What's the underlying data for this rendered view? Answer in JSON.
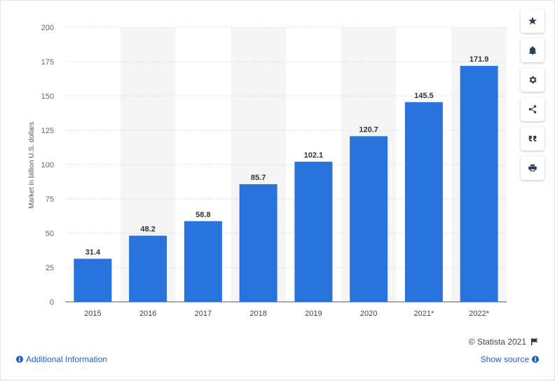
{
  "chart_data": {
    "type": "bar",
    "categories": [
      "2015",
      "2016",
      "2017",
      "2018",
      "2019",
      "2020",
      "2021*",
      "2022*"
    ],
    "values": [
      31.4,
      48.2,
      58.8,
      85.7,
      102.1,
      120.7,
      145.5,
      171.9
    ],
    "value_labels": [
      "31.4",
      "48.2",
      "58.8",
      "85.7",
      "102.1",
      "120.7",
      "145.5",
      "171.9"
    ],
    "ylabel": "Market in billion U.S. dollars",
    "ylim": [
      0,
      200
    ],
    "yticks": [
      0,
      25,
      50,
      75,
      100,
      125,
      150,
      175,
      200
    ],
    "grid": true,
    "bar_color": "#2873dc",
    "alt_band_color": "#f5f5f5"
  },
  "toolbar": {
    "icons": [
      "star-icon",
      "bell-icon",
      "gear-icon",
      "share-icon",
      "quote-icon",
      "print-icon"
    ]
  },
  "footer": {
    "copyright": "© Statista 2021",
    "additional_info": "Additional Information",
    "show_source": "Show source"
  }
}
